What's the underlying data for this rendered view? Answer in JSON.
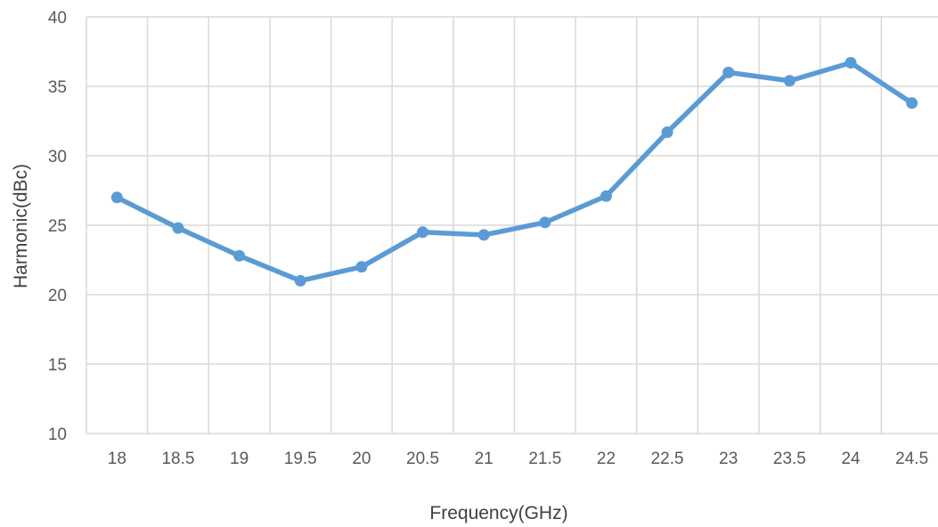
{
  "chart_data": {
    "type": "line",
    "title": "",
    "xlabel": "Frequency(GHz)",
    "ylabel": "Harmonic(dBc)",
    "categories": [
      "18",
      "18.5",
      "19",
      "19.5",
      "20",
      "20.5",
      "21",
      "21.5",
      "22",
      "22.5",
      "23",
      "23.5",
      "24",
      "24.5"
    ],
    "series": [
      {
        "values": [
          27.0,
          24.8,
          22.8,
          21.0,
          22.0,
          24.5,
          24.3,
          25.2,
          27.1,
          31.7,
          36.0,
          35.4,
          36.7,
          33.8
        ]
      }
    ],
    "ylim": [
      10,
      40
    ],
    "yticks": [
      10,
      15,
      20,
      25,
      30,
      35,
      40
    ],
    "grid": true,
    "legend": "none",
    "colors": {
      "series": "#5B9BD5",
      "grid": "#D9D9D9",
      "text": "#595959"
    }
  }
}
